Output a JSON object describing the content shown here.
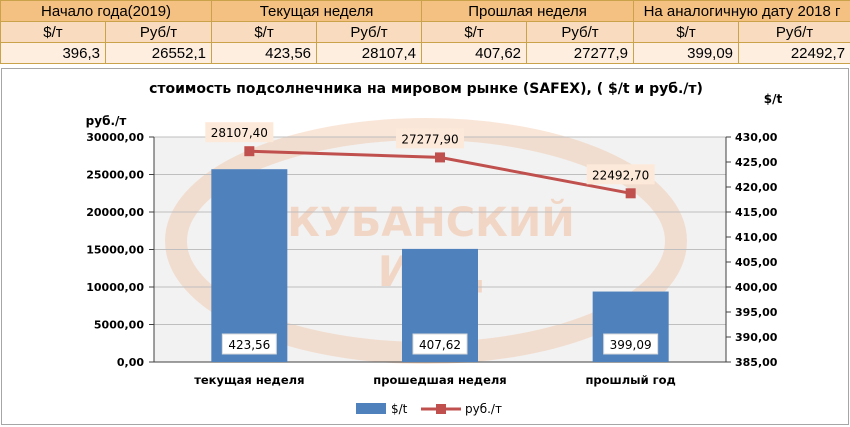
{
  "summary_table": {
    "headers": [
      "Начало года(2019)",
      "Текущая неделя",
      "Прошлая неделя",
      "На аналогичную дату 2018 г"
    ],
    "units": [
      "$/т",
      "Руб/т",
      "$/т",
      "Руб/т",
      "$/т",
      "Руб/т",
      "$/т",
      "Руб/т"
    ],
    "values": [
      "396,3",
      "26552,1",
      "423,56",
      "28107,4",
      "407,62",
      "27277,9",
      "399,09",
      "22492,7"
    ]
  },
  "watermark": {
    "line1": "КУБАНСКИЙ",
    "line2": "ИАЦ"
  },
  "chart_data": {
    "type": "bar",
    "title": "стоимость подсолнечника на мировом рынке (SAFEX), ( $/t и руб./т)",
    "categories": [
      "текущая неделя",
      "прошедшая неделя",
      "прошлый год"
    ],
    "left_axis": {
      "label": "руб./т",
      "range": [
        0,
        30000
      ],
      "ticks": [
        "0,00",
        "5000,00",
        "10000,00",
        "15000,00",
        "20000,00",
        "25000,00",
        "30000,00"
      ]
    },
    "right_axis": {
      "label": "$/t",
      "range": [
        385,
        430
      ],
      "ticks": [
        "385,00",
        "390,00",
        "395,00",
        "400,00",
        "405,00",
        "410,00",
        "415,00",
        "420,00",
        "425,00",
        "430,00"
      ]
    },
    "series": [
      {
        "name": "$/t",
        "type": "bar",
        "axis": "right",
        "values": [
          423.56,
          407.62,
          399.09
        ],
        "labels": [
          "423,56",
          "407,62",
          "399,09"
        ],
        "color": "#4f81bd"
      },
      {
        "name": "руб./т",
        "type": "line",
        "axis": "left",
        "values": [
          28107.4,
          27277.9,
          22492.7
        ],
        "labels": [
          "28107,40",
          "27277,90",
          "22492,70"
        ],
        "color": "#c0504d"
      }
    ],
    "legend_position": "bottom",
    "grid": true
  },
  "colors": {
    "header_bg": "#f4c183",
    "units_bg": "#f9dcc0",
    "values_bg": "#fdeee0",
    "bar": "#4f81bd",
    "line": "#c0504d",
    "watermark": "#f2b690"
  }
}
